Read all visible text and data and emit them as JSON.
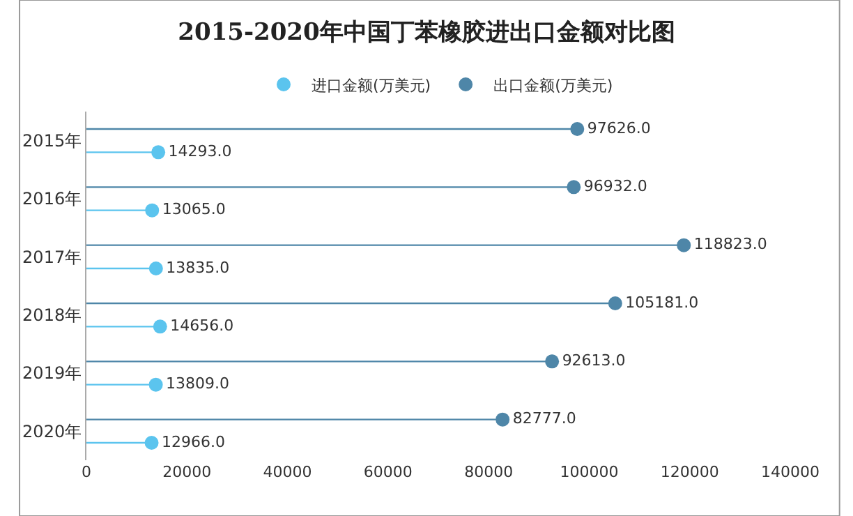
{
  "chart_data": {
    "type": "lollipop",
    "orientation": "horizontal",
    "title": "2015-2020年中国丁苯橡胶进出口金额对比图",
    "categories": [
      "2015年",
      "2016年",
      "2017年",
      "2018年",
      "2019年",
      "2020年"
    ],
    "series": [
      {
        "name": "进口金额(万美元)",
        "color": "#5bc4ee",
        "values": [
          14293.0,
          13065.0,
          13835.0,
          14656.0,
          13809.0,
          12966.0
        ],
        "value_labels": [
          "14293.0",
          "13065.0",
          "13835.0",
          "14656.0",
          "13809.0",
          "12966.0"
        ]
      },
      {
        "name": "出口金额(万美元)",
        "color": "#4e86a8",
        "values": [
          97626.0,
          96932.0,
          118823.0,
          105181.0,
          92613.0,
          82777.0
        ],
        "value_labels": [
          "97626.0",
          "96932.0",
          "118823.0",
          "105181.0",
          "92613.0",
          "82777.0"
        ]
      }
    ],
    "xlim": [
      0,
      140000
    ],
    "xticks": [
      0,
      20000,
      40000,
      60000,
      80000,
      100000,
      120000,
      140000
    ],
    "grid": false,
    "legend": "top",
    "marker": "circle"
  }
}
